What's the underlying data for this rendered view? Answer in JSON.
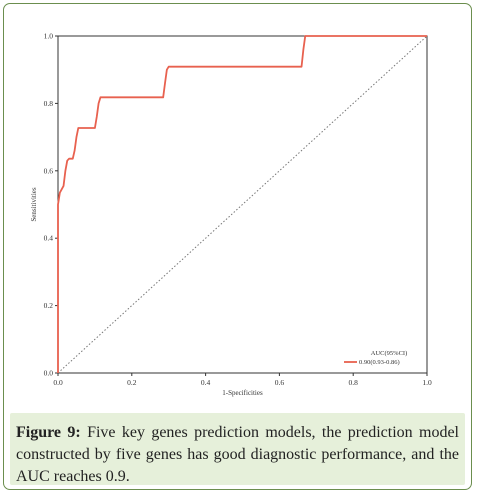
{
  "chart_data": {
    "type": "line",
    "xlabel": "1-Specificities",
    "ylabel": "Sensitivities",
    "xlim": [
      0.0,
      1.0
    ],
    "ylim": [
      0.0,
      1.0
    ],
    "x_ticks": [
      "0.0",
      "0.2",
      "0.4",
      "0.6",
      "0.8",
      "1.0"
    ],
    "y_ticks": [
      "0.0",
      "0.2",
      "0.4",
      "0.6",
      "0.8",
      "1.0"
    ],
    "grid": false,
    "legend_position": "bottom-right",
    "legend_title": "AUC(95%CI)",
    "series": [
      {
        "name": "0.90(0.93-0.86)",
        "color": "#e8614f",
        "style": "solid",
        "x": [
          0,
          0,
          0.005,
          0.01,
          0.015,
          0.02,
          0.025,
          0.03,
          0.04,
          0.045,
          0.05,
          0.055,
          0.06,
          0.1,
          0.105,
          0.11,
          0.115,
          0.12,
          0.285,
          0.29,
          0.295,
          0.3,
          0.66,
          0.665,
          0.67,
          1.0
        ],
        "y": [
          0,
          0.5,
          0.535,
          0.545,
          0.555,
          0.6,
          0.63,
          0.636,
          0.636,
          0.66,
          0.7,
          0.727,
          0.727,
          0.727,
          0.76,
          0.8,
          0.818,
          0.818,
          0.818,
          0.86,
          0.9,
          0.909,
          0.909,
          0.96,
          1.0,
          1.0
        ]
      }
    ],
    "reference_line": {
      "x": [
        0,
        1
      ],
      "y": [
        0,
        1
      ],
      "color": "#777777",
      "style": "dotted"
    }
  },
  "caption": {
    "label": "Figure 9:",
    "text": " Five key genes prediction models, the prediction model constructed by five genes has good diagnostic performance, and the AUC reaches 0.9."
  }
}
